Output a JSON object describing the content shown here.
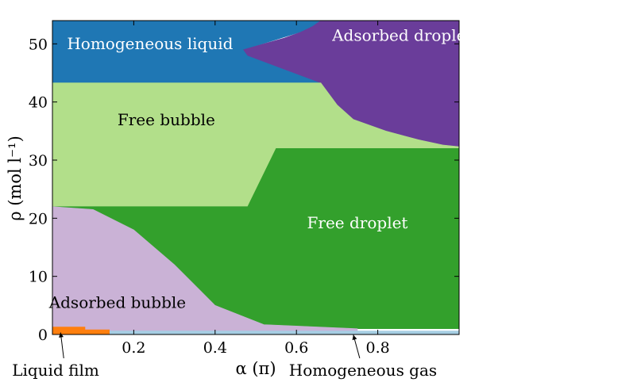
{
  "chart_data": {
    "type": "heatmap",
    "title": "",
    "xlabel": "α (π)",
    "ylabel": "ρ (mol l⁻¹)",
    "xlim": [
      0.0,
      1.0
    ],
    "ylim": [
      0,
      54
    ],
    "xticks": [
      {
        "value": 0.2,
        "label": "0.2"
      },
      {
        "value": 0.4,
        "label": "0.4"
      },
      {
        "value": 0.6,
        "label": "0.6"
      },
      {
        "value": 0.8,
        "label": "0.8"
      }
    ],
    "yticks": [
      {
        "value": 0,
        "label": "0"
      },
      {
        "value": 10,
        "label": "10"
      },
      {
        "value": 20,
        "label": "20"
      },
      {
        "value": 30,
        "label": "30"
      },
      {
        "value": 40,
        "label": "40"
      },
      {
        "value": 50,
        "label": "50"
      }
    ],
    "regions": [
      {
        "name": "Homogeneous liquid",
        "color": "#1f77b4",
        "label_color": "#ffffff",
        "label_at": [
          0.24,
          49.1
        ],
        "boundary": [
          [
            0,
            54
          ],
          [
            0.7,
            54
          ],
          [
            0.47,
            49
          ],
          [
            0.48,
            48
          ],
          [
            0.66,
            43.3
          ],
          [
            0,
            43.3
          ]
        ]
      },
      {
        "name": "Adsorbed droplet",
        "color": "#6a3d9a",
        "label_color": "#ffffff",
        "label_at": [
          0.86,
          50.5
        ],
        "boundary": [
          [
            0.47,
            49
          ],
          [
            0.52,
            50
          ],
          [
            0.57,
            51
          ],
          [
            0.61,
            52
          ],
          [
            0.64,
            53
          ],
          [
            0.66,
            54
          ],
          [
            1.0,
            54
          ],
          [
            1.0,
            32.3
          ],
          [
            0.96,
            32.6
          ],
          [
            0.9,
            33.5
          ],
          [
            0.82,
            35
          ],
          [
            0.74,
            37
          ],
          [
            0.7,
            39.5
          ],
          [
            0.66,
            43.3
          ],
          [
            0.48,
            48
          ]
        ]
      },
      {
        "name": "Free bubble",
        "color": "#b2df8a",
        "label_color": "#000000",
        "label_at": [
          0.28,
          36.0
        ],
        "boundary": [
          [
            0,
            43.3
          ],
          [
            0.66,
            43.3
          ],
          [
            0.7,
            39.5
          ],
          [
            0.74,
            37
          ],
          [
            0.82,
            35
          ],
          [
            0.9,
            33.5
          ],
          [
            0.96,
            32.6
          ],
          [
            1.0,
            32.3
          ],
          [
            1.0,
            32
          ],
          [
            0.55,
            32
          ],
          [
            0.48,
            22
          ],
          [
            0,
            22
          ]
        ]
      },
      {
        "name": "Free droplet",
        "color": "#33a02c",
        "label_color": "#ffffff",
        "label_at": [
          0.75,
          18.3
        ],
        "boundary": [
          [
            0,
            22
          ],
          [
            0.48,
            22
          ],
          [
            0.55,
            32
          ],
          [
            1.0,
            32
          ],
          [
            1.0,
            1.0
          ],
          [
            0.75,
            1.0
          ],
          [
            0.52,
            1.7
          ],
          [
            0.4,
            5
          ],
          [
            0.3,
            12
          ],
          [
            0.2,
            18
          ],
          [
            0.1,
            21.5
          ],
          [
            0,
            22
          ]
        ]
      },
      {
        "name": "Adsorbed bubble",
        "color": "#cab2d6",
        "label_color": "#000000",
        "label_at": [
          0.16,
          4.6
        ],
        "boundary": [
          [
            0,
            22
          ],
          [
            0.1,
            21.5
          ],
          [
            0.2,
            18
          ],
          [
            0.3,
            12
          ],
          [
            0.4,
            5
          ],
          [
            0.52,
            1.7
          ],
          [
            0.75,
            1.0
          ],
          [
            0.75,
            0
          ],
          [
            0,
            0
          ]
        ]
      },
      {
        "name": "Homogeneous gas",
        "color": "#a6cee3",
        "label_color": "#000000",
        "label_at": null,
        "boundary": [
          [
            0.14,
            0
          ],
          [
            1.0,
            0
          ],
          [
            1.0,
            0.6
          ],
          [
            0.14,
            0.6
          ]
        ]
      },
      {
        "name": "Liquid film",
        "color": "#ff7f0e",
        "label_color": "#000000",
        "label_at": null,
        "boundary": [
          [
            0,
            0
          ],
          [
            0.14,
            0
          ],
          [
            0.14,
            0.8
          ],
          [
            0.08,
            0.8
          ],
          [
            0.08,
            1.3
          ],
          [
            0,
            1.3
          ]
        ]
      }
    ],
    "annotations": [
      {
        "text": "Liquid film",
        "arrow_tip": [
          0.02,
          0.6
        ]
      },
      {
        "text": "Homogeneous gas",
        "arrow_tip": [
          0.74,
          0.2
        ]
      }
    ],
    "grid": false,
    "legend": "none"
  }
}
